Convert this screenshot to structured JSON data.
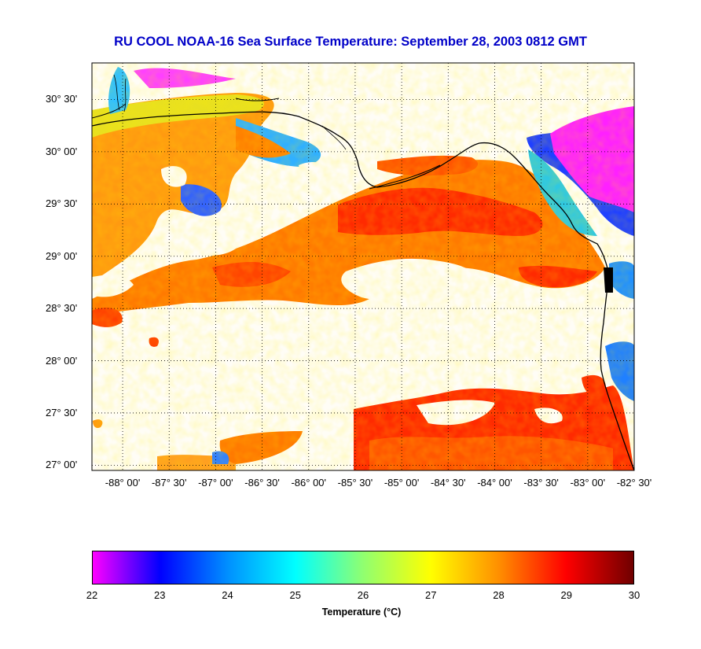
{
  "title": "RU COOL  NOAA-16  Sea Surface Temperature:  September 28, 2003 0812 GMT",
  "map": {
    "lon_range": [
      -88.33,
      -82.5
    ],
    "lat_range": [
      26.95,
      30.85
    ],
    "lat_ticks": [
      {
        "value": 30.5,
        "label": "30° 30'"
      },
      {
        "value": 30.0,
        "label": "30° 00'"
      },
      {
        "value": 29.5,
        "label": "29° 30'"
      },
      {
        "value": 29.0,
        "label": "29° 00'"
      },
      {
        "value": 28.5,
        "label": "28° 30'"
      },
      {
        "value": 28.0,
        "label": "28° 00'"
      },
      {
        "value": 27.5,
        "label": "27° 30'"
      },
      {
        "value": 27.0,
        "label": "27° 00'"
      }
    ],
    "lon_ticks": [
      {
        "value": -88.0,
        "label": "-88° 00'"
      },
      {
        "value": -87.5,
        "label": "-87° 30'"
      },
      {
        "value": -87.0,
        "label": "-87° 00'"
      },
      {
        "value": -86.5,
        "label": "-86° 30'"
      },
      {
        "value": -86.0,
        "label": "-86° 00'"
      },
      {
        "value": -85.5,
        "label": "-85° 30'"
      },
      {
        "value": -85.0,
        "label": "-85° 00'"
      },
      {
        "value": -84.5,
        "label": "-84° 30'"
      },
      {
        "value": -84.0,
        "label": "-84° 00'"
      },
      {
        "value": -83.5,
        "label": "-83° 30'"
      },
      {
        "value": -83.0,
        "label": "-83° 00'"
      },
      {
        "value": -82.5,
        "label": "-82° 30'"
      }
    ],
    "grid": "dotted"
  },
  "colorbar": {
    "min": 22,
    "max": 30,
    "ticks": [
      "22",
      "23",
      "24",
      "25",
      "26",
      "27",
      "28",
      "29",
      "30"
    ],
    "label": "Temperature (°C)",
    "colors": [
      "#ff00ff",
      "#0000ff",
      "#0090ff",
      "#00ffff",
      "#90ff70",
      "#ffff00",
      "#ff9000",
      "#ff0000",
      "#700000"
    ]
  }
}
